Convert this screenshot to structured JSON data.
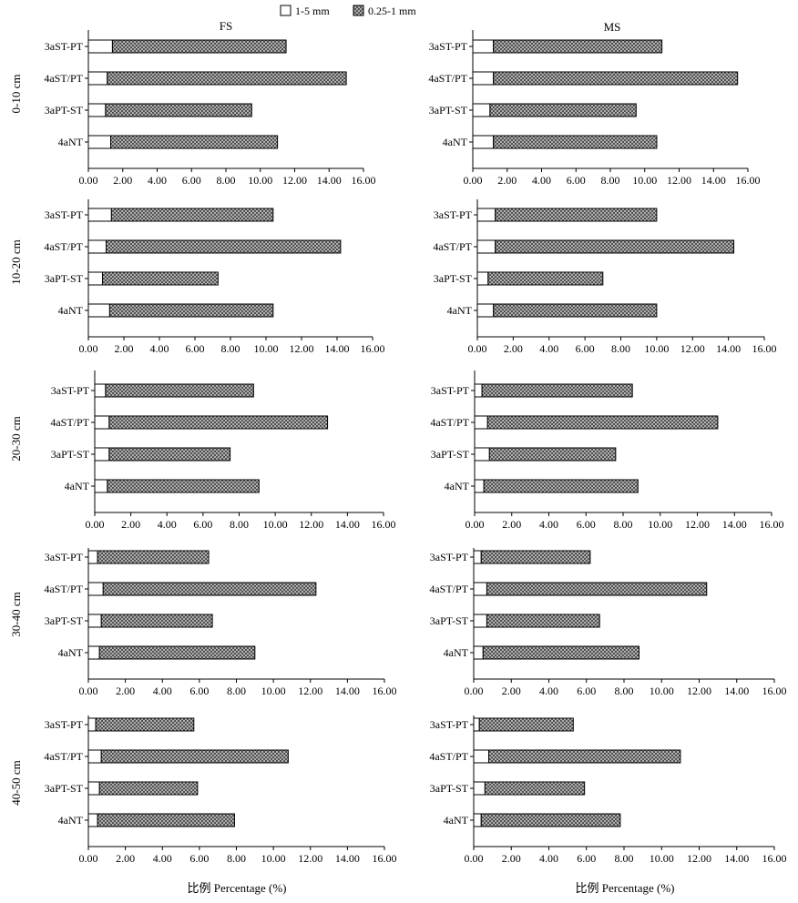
{
  "legend": {
    "position": "top-center",
    "items": [
      {
        "label": "1-5 mm",
        "pattern": "white"
      },
      {
        "label": "0.25-1 mm",
        "pattern": "crosshatch"
      }
    ]
  },
  "columns": [
    "FS",
    "MS"
  ],
  "rows": [
    "0-10 cm",
    "10-20 cm",
    "20-30 cm",
    "30-40 cm",
    "40-50 cm"
  ],
  "xlabel": "比例 Percentage (%)",
  "colors": {
    "axis": "#000000",
    "bar_fill_small": "#ffffff",
    "hatch_bg": "#c8c8c8",
    "hatch_line": "#3a3a3a"
  },
  "chart_data": {
    "type": "bar",
    "orientation": "horizontal",
    "stacked": true,
    "categories": [
      "3aST-PT",
      "4aST/PT",
      "3aPT-ST",
      "4aNT"
    ],
    "series_names": [
      "1-5 mm",
      "0.25-1 mm"
    ],
    "xlim": [
      0,
      16
    ],
    "xticks": [
      "0.00",
      "2.00",
      "4.00",
      "6.00",
      "8.00",
      "10.00",
      "12.00",
      "14.00",
      "16.00"
    ],
    "xlabel": "比例 Percentage (%)",
    "grid": false,
    "panels": [
      {
        "column": "FS",
        "depth": "0-10 cm",
        "series": [
          {
            "name": "1-5 mm",
            "values": [
              1.4,
              1.1,
              1.0,
              1.3
            ]
          },
          {
            "name": "0.25-1 mm",
            "values": [
              10.1,
              13.9,
              8.5,
              9.7
            ]
          }
        ]
      },
      {
        "column": "MS",
        "depth": "0-10 cm",
        "series": [
          {
            "name": "1-5 mm",
            "values": [
              1.2,
              1.2,
              1.0,
              1.2
            ]
          },
          {
            "name": "0.25-1 mm",
            "values": [
              9.8,
              14.2,
              8.5,
              9.5
            ]
          }
        ]
      },
      {
        "column": "FS",
        "depth": "10-20 cm",
        "series": [
          {
            "name": "1-5 mm",
            "values": [
              1.3,
              1.0,
              0.8,
              1.2
            ]
          },
          {
            "name": "0.25-1 mm",
            "values": [
              9.1,
              13.2,
              6.5,
              9.2
            ]
          }
        ]
      },
      {
        "column": "MS",
        "depth": "10-20 cm",
        "series": [
          {
            "name": "1-5 mm",
            "values": [
              1.0,
              1.0,
              0.6,
              0.9
            ]
          },
          {
            "name": "0.25-1 mm",
            "values": [
              9.0,
              13.3,
              6.4,
              9.1
            ]
          }
        ]
      },
      {
        "column": "FS",
        "depth": "20-30 cm",
        "series": [
          {
            "name": "1-5 mm",
            "values": [
              0.6,
              0.8,
              0.8,
              0.7
            ]
          },
          {
            "name": "0.25-1 mm",
            "values": [
              8.2,
              12.1,
              6.7,
              8.4
            ]
          }
        ]
      },
      {
        "column": "MS",
        "depth": "20-30 cm",
        "series": [
          {
            "name": "1-5 mm",
            "values": [
              0.4,
              0.7,
              0.8,
              0.5
            ]
          },
          {
            "name": "0.25-1 mm",
            "values": [
              8.1,
              12.4,
              6.8,
              8.3
            ]
          }
        ]
      },
      {
        "column": "FS",
        "depth": "30-40 cm",
        "series": [
          {
            "name": "1-5 mm",
            "values": [
              0.5,
              0.8,
              0.7,
              0.6
            ]
          },
          {
            "name": "0.25-1 mm",
            "values": [
              6.0,
              11.5,
              6.0,
              8.4
            ]
          }
        ]
      },
      {
        "column": "MS",
        "depth": "30-40 cm",
        "series": [
          {
            "name": "1-5 mm",
            "values": [
              0.4,
              0.7,
              0.7,
              0.5
            ]
          },
          {
            "name": "0.25-1 mm",
            "values": [
              5.8,
              11.7,
              6.0,
              8.3
            ]
          }
        ]
      },
      {
        "column": "FS",
        "depth": "40-50 cm",
        "series": [
          {
            "name": "1-5 mm",
            "values": [
              0.4,
              0.7,
              0.6,
              0.5
            ]
          },
          {
            "name": "0.25-1 mm",
            "values": [
              5.3,
              10.1,
              5.3,
              7.4
            ]
          }
        ]
      },
      {
        "column": "MS",
        "depth": "40-50 cm",
        "series": [
          {
            "name": "1-5 mm",
            "values": [
              0.3,
              0.8,
              0.6,
              0.4
            ]
          },
          {
            "name": "0.25-1 mm",
            "values": [
              5.0,
              10.2,
              5.3,
              7.4
            ]
          }
        ]
      }
    ]
  }
}
